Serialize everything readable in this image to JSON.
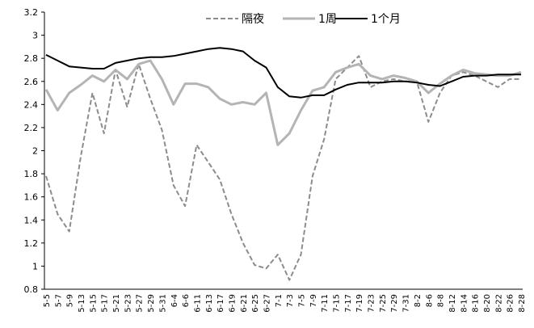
{
  "chart_data": {
    "type": "line",
    "categories": [
      "5-5",
      "5-7",
      "5-9",
      "5-13",
      "5-15",
      "5-17",
      "5-21",
      "5-23",
      "5-27",
      "5-29",
      "5-31",
      "6-4",
      "6-6",
      "6-11",
      "6-13",
      "6-17",
      "6-19",
      "6-21",
      "6-25",
      "6-27",
      "7-1",
      "7-3",
      "7-5",
      "7-9",
      "7-11",
      "7-15",
      "7-17",
      "7-19",
      "7-23",
      "7-25",
      "7-29",
      "7-31",
      "8-2",
      "8-6",
      "8-8",
      "8-12",
      "8-14",
      "8-16",
      "8-20",
      "8-22",
      "8-26",
      "8-28"
    ],
    "series": [
      {
        "name": "隔夜",
        "color": "#8c8c8c",
        "style": "dashed",
        "values": [
          1.78,
          1.45,
          1.3,
          1.95,
          2.5,
          2.15,
          2.7,
          2.38,
          2.75,
          2.45,
          2.18,
          1.7,
          1.52,
          2.05,
          1.9,
          1.75,
          1.45,
          1.2,
          1.01,
          0.98,
          1.1,
          0.88,
          1.1,
          1.78,
          2.1,
          2.62,
          2.72,
          2.82,
          2.55,
          2.6,
          2.62,
          2.6,
          2.6,
          2.25,
          2.5,
          2.65,
          2.68,
          2.65,
          2.6,
          2.55,
          2.62,
          2.62
        ]
      },
      {
        "name": "1周",
        "color": "#b4b4b4",
        "style": "double",
        "values": [
          2.53,
          2.35,
          2.5,
          2.57,
          2.65,
          2.6,
          2.7,
          2.62,
          2.75,
          2.78,
          2.62,
          2.4,
          2.58,
          2.58,
          2.55,
          2.45,
          2.4,
          2.42,
          2.4,
          2.5,
          2.05,
          2.15,
          2.35,
          2.52,
          2.55,
          2.68,
          2.72,
          2.75,
          2.65,
          2.62,
          2.65,
          2.63,
          2.6,
          2.5,
          2.58,
          2.65,
          2.7,
          2.67,
          2.66,
          2.65,
          2.65,
          2.68
        ]
      },
      {
        "name": "1个月",
        "color": "#000000",
        "style": "solid",
        "values": [
          2.83,
          2.78,
          2.73,
          2.72,
          2.71,
          2.71,
          2.76,
          2.78,
          2.8,
          2.81,
          2.81,
          2.82,
          2.84,
          2.86,
          2.88,
          2.89,
          2.88,
          2.86,
          2.78,
          2.72,
          2.55,
          2.47,
          2.46,
          2.48,
          2.48,
          2.53,
          2.57,
          2.59,
          2.59,
          2.59,
          2.6,
          2.6,
          2.59,
          2.57,
          2.56,
          2.6,
          2.64,
          2.65,
          2.65,
          2.66,
          2.66,
          2.66
        ]
      }
    ],
    "ylim": [
      0.8,
      3.2
    ],
    "yticks": [
      0.8,
      1,
      1.2,
      1.4,
      1.6,
      1.8,
      2,
      2.2,
      2.4,
      2.6,
      2.8,
      3,
      3.2
    ],
    "grid": false,
    "legend": "top"
  }
}
